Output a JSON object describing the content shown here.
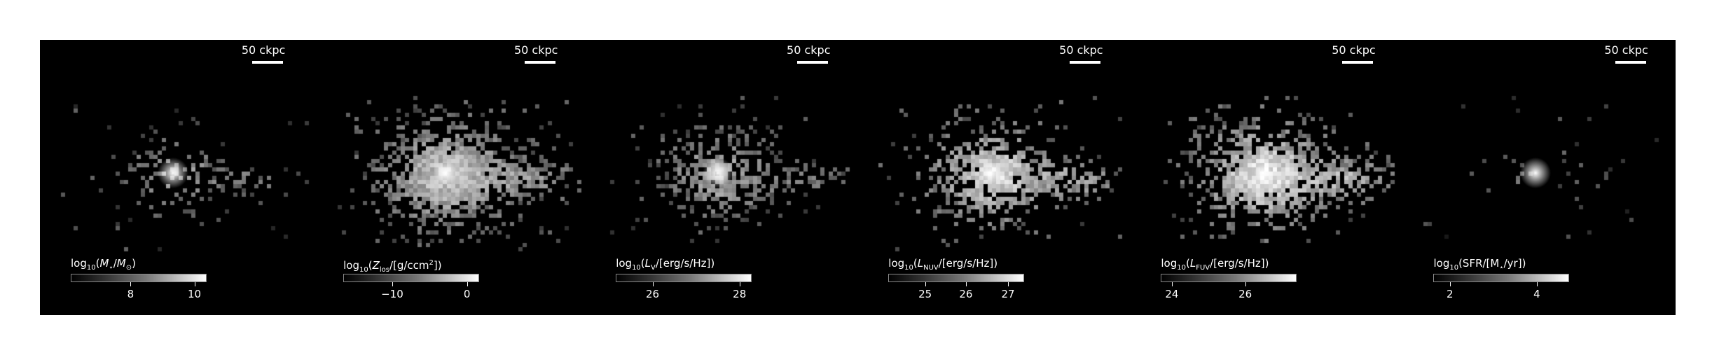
{
  "panels": [
    {
      "scale_label": "50 ckpc",
      "colorbar_label": "log₁₀(M⋆/M⊙)",
      "ticks": [
        {
          "label": "8",
          "frac": 0.44
        },
        {
          "label": "10",
          "frac": 0.91
        }
      ]
    },
    {
      "scale_label": "50 ckpc",
      "colorbar_label": "log₁₀(Z_los/[g/ccm²])",
      "ticks": [
        {
          "label": "−10",
          "frac": 0.36
        },
        {
          "label": "0",
          "frac": 0.91
        }
      ]
    },
    {
      "scale_label": "50 ckpc",
      "colorbar_label": "log₁₀(L_V/[erg/s/Hz])",
      "ticks": [
        {
          "label": "26",
          "frac": 0.27
        },
        {
          "label": "28",
          "frac": 0.91
        }
      ]
    },
    {
      "scale_label": "50 ckpc",
      "colorbar_label": "log₁₀(L_NUV/[erg/s/Hz])",
      "ticks": [
        {
          "label": "25",
          "frac": 0.27
        },
        {
          "label": "26",
          "frac": 0.57
        },
        {
          "label": "27",
          "frac": 0.88
        }
      ]
    },
    {
      "scale_label": "50 ckpc",
      "colorbar_label": "log₁₀(L_FUV/[erg/s/Hz])",
      "ticks": [
        {
          "label": "24",
          "frac": 0.08
        },
        {
          "label": "26",
          "frac": 0.62
        }
      ]
    },
    {
      "scale_label": "50 ckpc",
      "colorbar_label": "log₁₀(SFR/[M⋆/yr])",
      "ticks": [
        {
          "label": "2",
          "frac": 0.12
        },
        {
          "label": "4",
          "frac": 0.76
        }
      ]
    }
  ],
  "colors": {
    "background": "#000000",
    "page": "#ffffff",
    "text": "#ffffff"
  }
}
